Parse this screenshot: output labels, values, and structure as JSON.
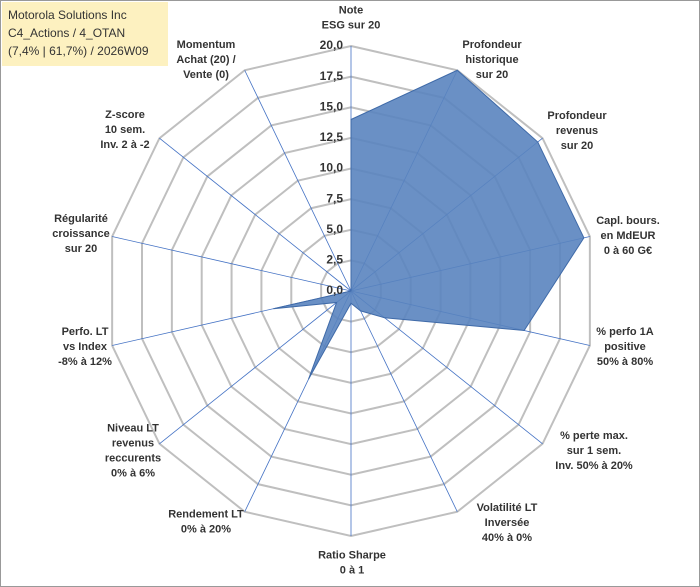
{
  "chart_data": {
    "type": "radar",
    "title": [
      "Motorola Solutions Inc",
      "C4_Actions / 4_OTAN",
      "(7,4% | 61,7%) / 2026W09"
    ],
    "categories": [
      [
        "Note",
        "ESG sur 20"
      ],
      [
        "Profondeur",
        "historique",
        "sur 20"
      ],
      [
        "Profondeur",
        "revenus",
        "sur 20"
      ],
      [
        "Capl. bours.",
        "en MdEUR",
        "0 à 60 G€"
      ],
      [
        "% perfo 1A",
        "positive",
        "50% à 80%"
      ],
      [
        "% perte max.",
        "sur 1 sem.",
        "Inv. 50% à 20%"
      ],
      [
        "Volatilité LT",
        "Inversée",
        "40% à 0%"
      ],
      [
        "Ratio Sharpe",
        "0 à 1"
      ],
      [
        "Rendement LT",
        "0% à 20%"
      ],
      [
        "Niveau LT",
        "revenus",
        "reccurents",
        "0% à 6%"
      ],
      [
        "Perfo. LT",
        "vs Index",
        "-8% à 12%"
      ],
      [
        "Régularité",
        "croissance",
        "sur 20"
      ],
      [
        "Z-score",
        "10 sem.",
        "Inv. 2 à -2"
      ],
      [
        "Momentum",
        "Achat (20) /",
        "Vente (0)"
      ]
    ],
    "values": [
      14,
      20,
      19.5,
      19.5,
      14.5,
      3.5,
      1.8,
      1,
      8,
      1.5,
      6.5,
      0,
      0,
      0
    ],
    "color": "#5a84bf",
    "ylim": [
      0,
      20
    ],
    "yticks": [
      {
        "value": 0,
        "label": "0,0"
      },
      {
        "value": 2.5,
        "label": "2,5"
      },
      {
        "value": 5,
        "label": "5,0"
      },
      {
        "value": 7.5,
        "label": "7,5"
      },
      {
        "value": 10,
        "label": "10,0"
      },
      {
        "value": 12.5,
        "label": "12,5"
      },
      {
        "value": 15,
        "label": "15,0"
      },
      {
        "value": 17.5,
        "label": "17,5"
      },
      {
        "value": 20,
        "label": "20,0"
      }
    ],
    "grid": true
  }
}
